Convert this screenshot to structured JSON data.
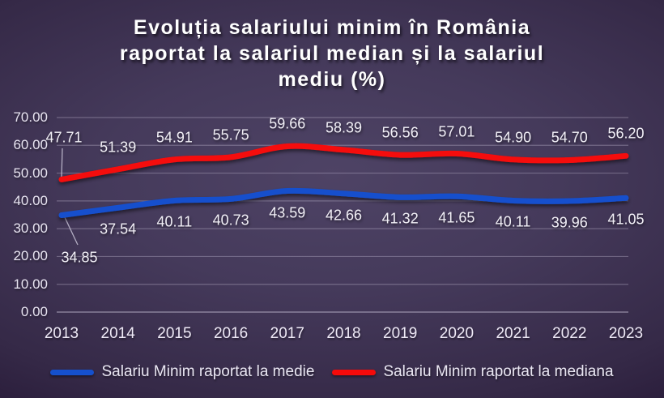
{
  "chart_data": {
    "type": "line",
    "title": "Evoluția salariului minim în România raportat la salariul median și la salariul mediu (%)",
    "title_lines": [
      "Evoluția salariului minim în România",
      "raportat la salariul median și la salariul",
      "mediu (%)"
    ],
    "categories": [
      "2013",
      "2014",
      "2015",
      "2016",
      "2017",
      "2018",
      "2019",
      "2020",
      "2021",
      "2022",
      "2023"
    ],
    "series": [
      {
        "name": "Salariu Minim raportat la medie",
        "color": "#1550cd",
        "label_position": "below",
        "values": [
          34.85,
          37.54,
          40.11,
          40.73,
          43.59,
          42.66,
          41.32,
          41.65,
          40.11,
          39.96,
          41.05
        ]
      },
      {
        "name": "Salariu Minim raportat la mediana",
        "color": "#f50a0a",
        "label_position": "above",
        "values": [
          47.71,
          51.39,
          54.91,
          55.75,
          59.66,
          58.39,
          56.56,
          57.01,
          54.9,
          54.7,
          56.2
        ]
      }
    ],
    "y_axis": {
      "min": 0,
      "max": 70,
      "step": 10
    },
    "grid": true,
    "legend_position": "bottom",
    "data_labels": true
  }
}
